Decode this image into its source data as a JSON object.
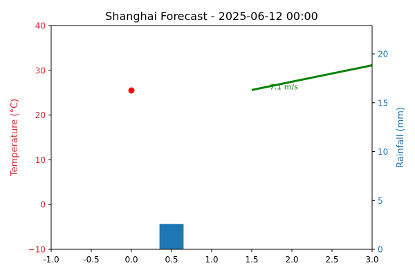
{
  "chart_data": {
    "type": "combo",
    "title": "Shanghai Forecast - 2025-06-12 00:00",
    "x_axis": {
      "range": [
        -1.0,
        3.0
      ],
      "ticks": [
        "-1.0",
        "-0.5",
        "0.0",
        "0.5",
        "1.0",
        "1.5",
        "2.0",
        "2.5",
        "3.0"
      ],
      "tick_values": [
        -1.0,
        -0.5,
        0.0,
        0.5,
        1.0,
        1.5,
        2.0,
        2.5,
        3.0
      ]
    },
    "y_left": {
      "label": "Temperature (°C)",
      "range": [
        -10,
        40
      ],
      "ticks": [
        "−10",
        "0",
        "10",
        "20",
        "30",
        "40"
      ],
      "tick_values": [
        -10,
        0,
        10,
        20,
        30,
        40
      ],
      "color": "#d62728"
    },
    "y_right": {
      "label": "Rainfall (mm)",
      "range": [
        0,
        22.9
      ],
      "ticks": [
        "0",
        "5",
        "10",
        "15",
        "20"
      ],
      "tick_values": [
        0,
        5,
        10,
        15,
        20
      ],
      "color": "#1f77b4"
    },
    "temperature_point": {
      "x": 0.0,
      "y": 25.5,
      "color": "#ff0000"
    },
    "rainfall_bar": {
      "x": 0.5,
      "width": 0.3,
      "value": 2.6,
      "color": "#1f77b4"
    },
    "wind": {
      "start": {
        "x": 1.5,
        "y": 25.6
      },
      "end": {
        "x": 3.05,
        "y": 31.3
      },
      "label": "7.1 m/s",
      "label_pos": {
        "x": 1.9,
        "y": 25.7
      },
      "color": "#008000"
    }
  }
}
